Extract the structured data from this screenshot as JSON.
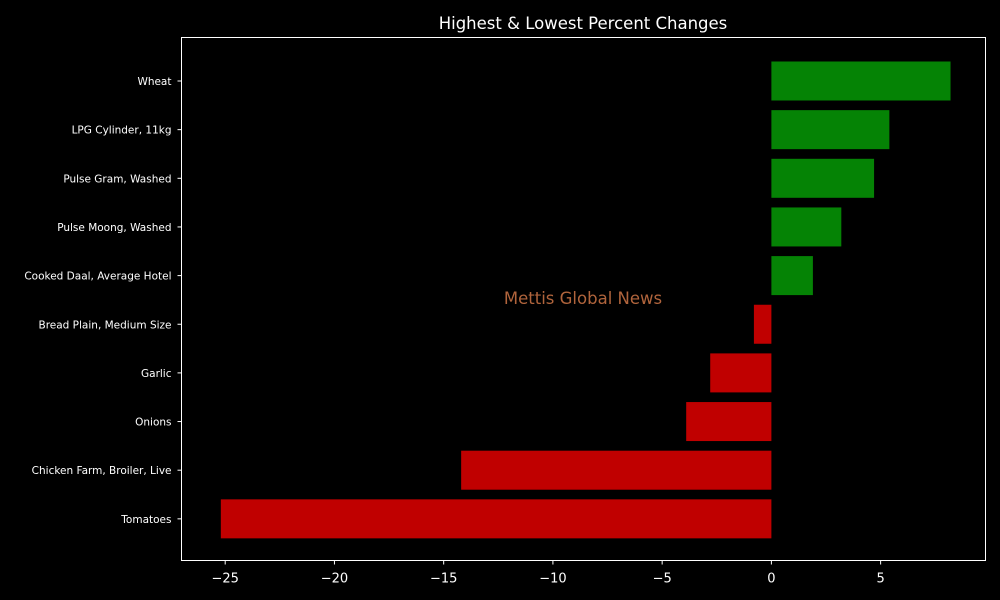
{
  "chart_data": {
    "type": "bar",
    "orientation": "horizontal",
    "title": "Highest & Lowest Percent Changes",
    "xlabel": "",
    "ylabel": "",
    "xlim": [
      -27,
      9.8
    ],
    "xticks": [
      -25,
      -20,
      -15,
      -10,
      -5,
      0,
      5
    ],
    "xtick_labels": [
      "−25",
      "−20",
      "−15",
      "−10",
      "−5",
      "0",
      "5"
    ],
    "categories": [
      "Wheat",
      "LPG Cylinder, 11kg",
      "Pulse Gram, Washed",
      "Pulse Moong, Washed",
      "Cooked Daal, Average Hotel",
      "Bread Plain, Medium Size",
      "Garlic",
      "Onions",
      "Chicken Farm, Broiler, Live",
      "Tomatoes"
    ],
    "values": [
      8.2,
      5.4,
      4.7,
      3.2,
      1.9,
      -0.8,
      -2.8,
      -3.9,
      -14.2,
      -25.2
    ],
    "grid": false,
    "positive_color": "#058305",
    "negative_color": "#c00000",
    "background": "#000000",
    "axis_color": "#ffffff",
    "watermark": {
      "text": "Mettis Global News",
      "color": "#b0643c"
    }
  }
}
